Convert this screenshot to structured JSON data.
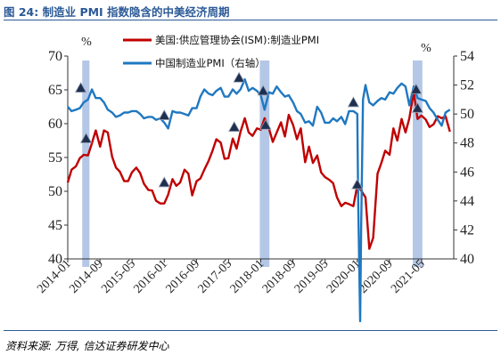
{
  "figure": {
    "title": "图 24: 制造业 PMI 指数隐含的中美经济周期",
    "source": "资料来源: 万得, 信达证券研发中心"
  },
  "chart_data": {
    "type": "line",
    "title": "图 24: 制造业 PMI 指数隐含的中美经济周期",
    "x_tick_labels": [
      "2014-01",
      "2014-09",
      "2015-05",
      "2016-01",
      "2016-09",
      "2017-05",
      "2018-01",
      "2018-09",
      "2019-05",
      "2020-01",
      "2020-09",
      "2021-05"
    ],
    "x_range": [
      2014.0,
      2022.0
    ],
    "y_left": {
      "label": "%",
      "range": [
        40,
        70
      ],
      "ticks": [
        40,
        45,
        50,
        55,
        60,
        65,
        70
      ]
    },
    "y_right": {
      "label": "%",
      "range": [
        40,
        54
      ],
      "ticks": [
        40,
        42,
        44,
        46,
        48,
        50,
        52,
        54
      ]
    },
    "legend_position": "top-center",
    "colors": {
      "us": "#c00000",
      "china": "#1f78c1",
      "band": "#b4c7e7",
      "marker": "#1f2f4f"
    },
    "shaded_periods": [
      [
        2014.3,
        2014.45
      ],
      [
        2017.98,
        2018.18
      ],
      [
        2021.15,
        2021.35
      ]
    ],
    "series": [
      {
        "name": "美国:供应管理协会(ISM):制造业PMI",
        "axis": "left",
        "x": [
          2014.0,
          2014.08,
          2014.17,
          2014.25,
          2014.33,
          2014.42,
          2014.5,
          2014.58,
          2014.67,
          2014.75,
          2014.83,
          2014.92,
          2015.0,
          2015.08,
          2015.17,
          2015.25,
          2015.33,
          2015.42,
          2015.5,
          2015.58,
          2015.67,
          2015.75,
          2015.83,
          2015.92,
          2016.0,
          2016.08,
          2016.17,
          2016.25,
          2016.33,
          2016.42,
          2016.5,
          2016.58,
          2016.67,
          2016.75,
          2016.83,
          2016.92,
          2017.0,
          2017.08,
          2017.17,
          2017.25,
          2017.33,
          2017.42,
          2017.5,
          2017.58,
          2017.67,
          2017.75,
          2017.83,
          2017.92,
          2018.0,
          2018.08,
          2018.17,
          2018.25,
          2018.33,
          2018.42,
          2018.5,
          2018.58,
          2018.67,
          2018.75,
          2018.83,
          2018.92,
          2019.0,
          2019.08,
          2019.17,
          2019.25,
          2019.33,
          2019.42,
          2019.5,
          2019.58,
          2019.67,
          2019.75,
          2019.83,
          2019.92,
          2020.0,
          2020.08,
          2020.17,
          2020.25,
          2020.33,
          2020.42,
          2020.5,
          2020.58,
          2020.67,
          2020.75,
          2020.83,
          2020.92,
          2021.0,
          2021.08,
          2021.17,
          2021.25,
          2021.33,
          2021.42,
          2021.5,
          2021.58,
          2021.67,
          2021.75,
          2021.83,
          2021.92
        ],
        "values": [
          51.3,
          53.2,
          53.7,
          54.9,
          55.4,
          55.3,
          57.1,
          59.0,
          56.6,
          59.0,
          58.7,
          55.1,
          53.5,
          52.9,
          51.5,
          51.5,
          52.8,
          53.5,
          52.7,
          51.1,
          50.2,
          50.1,
          48.6,
          48.2,
          48.2,
          49.5,
          51.8,
          50.8,
          51.3,
          53.2,
          52.6,
          49.4,
          51.5,
          51.9,
          53.2,
          54.5,
          56.0,
          57.7,
          57.2,
          54.8,
          54.9,
          57.8,
          56.3,
          58.8,
          60.8,
          58.7,
          58.2,
          59.3,
          59.1,
          60.8,
          59.3,
          57.3,
          58.7,
          60.2,
          58.1,
          61.3,
          59.8,
          57.7,
          59.3,
          54.3,
          56.6,
          54.2,
          55.3,
          52.8,
          52.1,
          51.7,
          51.2,
          49.1,
          47.8,
          48.3,
          48.1,
          47.8,
          50.9,
          50.1,
          49.1,
          41.5,
          43.1,
          52.6,
          54.2,
          56.0,
          55.4,
          59.3,
          57.5,
          60.7,
          58.7,
          60.8,
          64.7,
          60.7,
          61.2,
          60.6,
          59.5,
          59.9,
          61.1,
          60.8,
          61.1,
          58.8
        ]
      },
      {
        "name": "中国制造业PMI（右轴）",
        "axis": "right",
        "x": [
          2014.0,
          2014.08,
          2014.17,
          2014.25,
          2014.33,
          2014.42,
          2014.5,
          2014.58,
          2014.67,
          2014.75,
          2014.83,
          2014.92,
          2015.0,
          2015.08,
          2015.17,
          2015.25,
          2015.33,
          2015.42,
          2015.5,
          2015.58,
          2015.67,
          2015.75,
          2015.83,
          2015.92,
          2016.0,
          2016.08,
          2016.17,
          2016.25,
          2016.33,
          2016.42,
          2016.5,
          2016.58,
          2016.67,
          2016.75,
          2016.83,
          2016.92,
          2017.0,
          2017.08,
          2017.17,
          2017.25,
          2017.33,
          2017.42,
          2017.5,
          2017.58,
          2017.67,
          2017.75,
          2017.83,
          2017.92,
          2018.0,
          2018.08,
          2018.17,
          2018.25,
          2018.33,
          2018.42,
          2018.5,
          2018.58,
          2018.67,
          2018.75,
          2018.83,
          2018.92,
          2019.0,
          2019.08,
          2019.17,
          2019.25,
          2019.33,
          2019.42,
          2019.5,
          2019.58,
          2019.67,
          2019.75,
          2019.83,
          2019.92,
          2020.0,
          2020.02,
          2020.06,
          2020.08,
          2020.12,
          2020.17,
          2020.25,
          2020.33,
          2020.42,
          2020.5,
          2020.58,
          2020.67,
          2020.75,
          2020.83,
          2020.92,
          2021.0,
          2021.08,
          2021.17,
          2021.25,
          2021.33,
          2021.42,
          2021.5,
          2021.58,
          2021.67,
          2021.75,
          2021.83,
          2021.92
        ],
        "values": [
          50.5,
          50.2,
          50.3,
          50.4,
          50.8,
          51.0,
          51.7,
          51.1,
          51.1,
          50.8,
          50.3,
          50.1,
          49.8,
          49.9,
          50.1,
          50.1,
          50.2,
          50.2,
          50.0,
          49.7,
          49.8,
          49.8,
          49.6,
          49.7,
          49.4,
          49.0,
          50.2,
          50.1,
          50.1,
          50.0,
          49.9,
          50.4,
          50.4,
          51.2,
          51.7,
          51.4,
          51.3,
          51.6,
          51.8,
          51.2,
          51.2,
          51.7,
          51.4,
          51.7,
          52.4,
          51.6,
          51.8,
          51.6,
          51.3,
          50.3,
          51.5,
          51.4,
          51.9,
          51.5,
          51.2,
          51.3,
          50.8,
          50.2,
          50.0,
          49.4,
          49.5,
          49.2,
          50.5,
          50.1,
          49.4,
          49.4,
          49.7,
          49.5,
          49.8,
          49.3,
          50.2,
          50.2,
          50.0,
          44.0,
          35.7,
          42.0,
          51.0,
          52.0,
          50.8,
          50.6,
          50.9,
          51.1,
          51.0,
          51.5,
          51.4,
          51.8,
          52.1,
          51.9,
          50.6,
          51.9,
          51.1,
          51.0,
          50.9,
          50.4,
          50.1,
          49.6,
          49.2,
          50.1,
          50.3
        ]
      }
    ],
    "markers": [
      {
        "axis": "right",
        "x": 2014.27,
        "y": 51.8
      },
      {
        "axis": "left",
        "x": 2014.38,
        "y": 57.8
      },
      {
        "axis": "left",
        "x": 2016.0,
        "y": 51.3
      },
      {
        "axis": "right",
        "x": 2016.0,
        "y": 49.9
      },
      {
        "axis": "left",
        "x": 2017.45,
        "y": 59.5
      },
      {
        "axis": "right",
        "x": 2017.55,
        "y": 52.5
      },
      {
        "axis": "right",
        "x": 2018.05,
        "y": 51.6
      },
      {
        "axis": "left",
        "x": 2018.1,
        "y": 59.8
      },
      {
        "axis": "right",
        "x": 2019.92,
        "y": 50.8
      },
      {
        "axis": "left",
        "x": 2020.0,
        "y": 51.0
      },
      {
        "axis": "right",
        "x": 2021.22,
        "y": 51.7
      },
      {
        "axis": "left",
        "x": 2021.25,
        "y": 62.3
      }
    ]
  }
}
